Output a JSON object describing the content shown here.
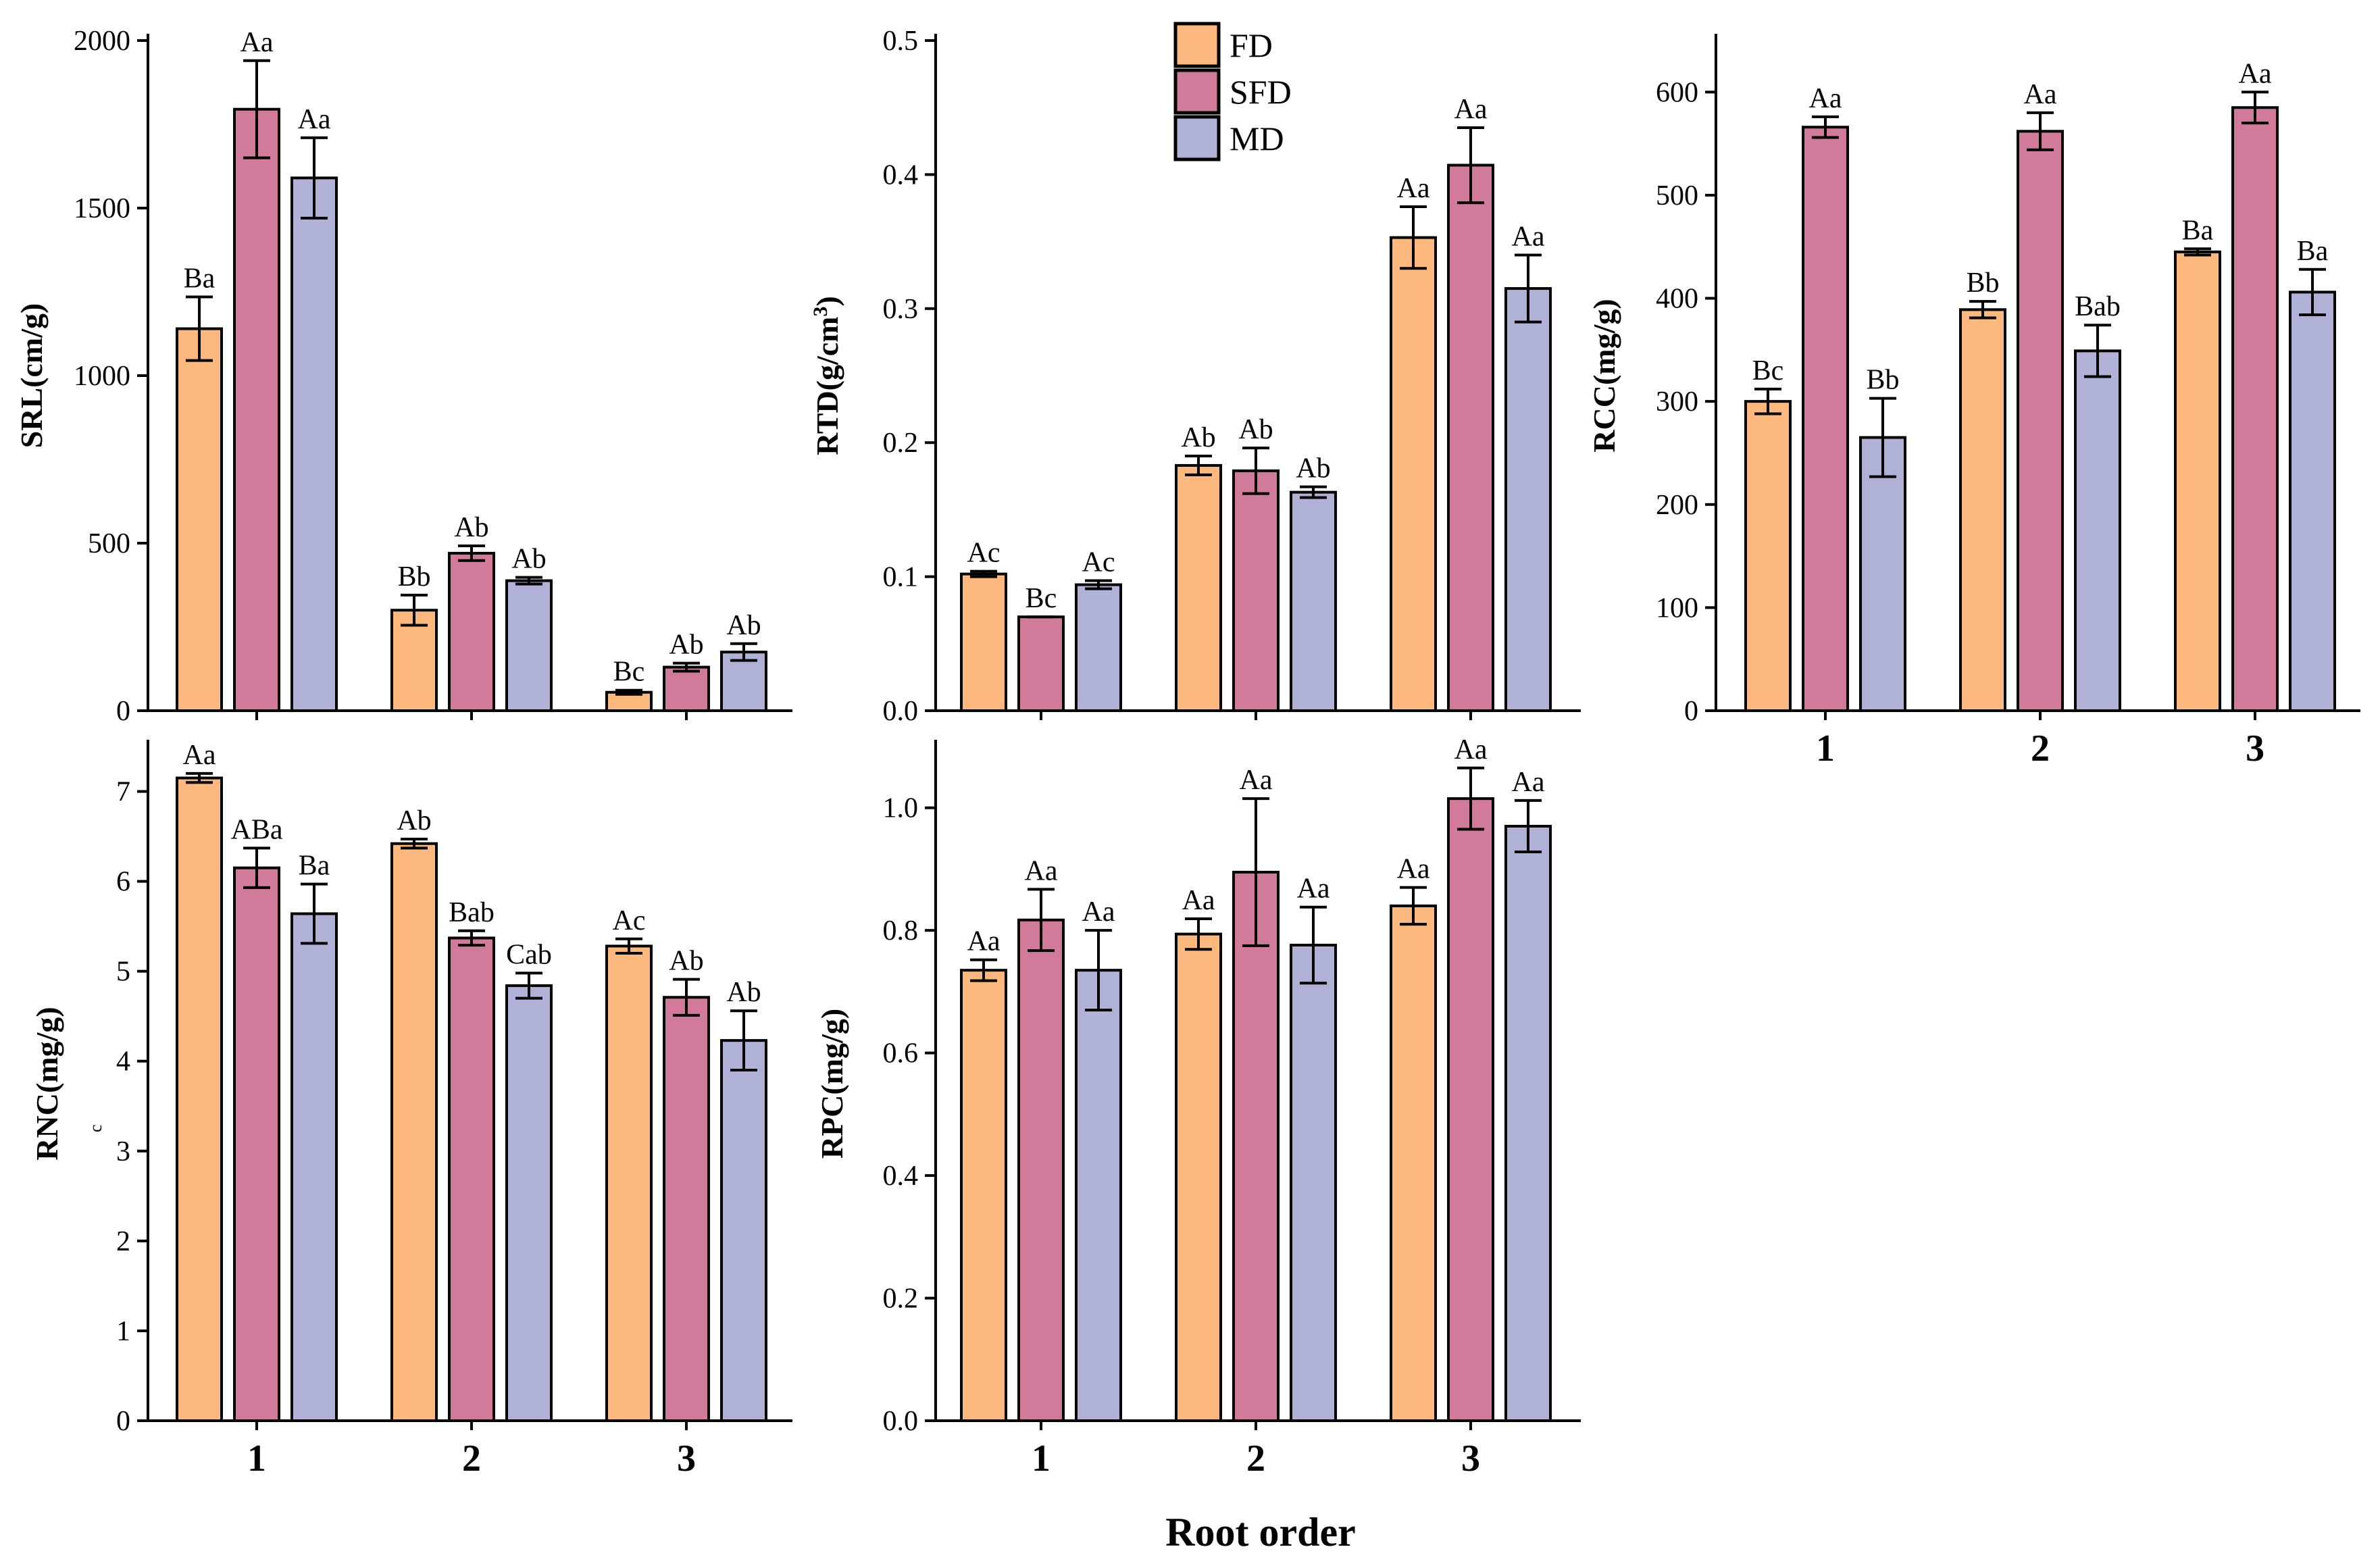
{
  "figure": {
    "x_title": "Root order",
    "stray_label": "c"
  },
  "legend": {
    "items": [
      {
        "name": "FD",
        "color": "#FDB97D"
      },
      {
        "name": "SFD",
        "color": "#D17A9B"
      },
      {
        "name": "MD",
        "color": "#B0B1D6"
      }
    ]
  },
  "chart_data": [
    {
      "id": "srl",
      "type": "bar",
      "ylabel": "SRL(cm/g)",
      "categories": [
        "1",
        "2",
        "3"
      ],
      "ylim": [
        0,
        2000
      ],
      "yticks": [
        0,
        500,
        1000,
        1500,
        2000
      ],
      "show_category_labels": false,
      "series": [
        {
          "name": "FD",
          "values": [
            1140,
            300,
            55
          ],
          "errors": [
            95,
            45,
            6
          ],
          "labels": [
            "Ba",
            "Bb",
            "Bc"
          ]
        },
        {
          "name": "SFD",
          "values": [
            1795,
            470,
            130
          ],
          "errors": [
            145,
            22,
            12
          ],
          "labels": [
            "Aa",
            "Ab",
            "Ab"
          ]
        },
        {
          "name": "MD",
          "values": [
            1590,
            388,
            175
          ],
          "errors": [
            120,
            10,
            25
          ],
          "labels": [
            "Aa",
            "Ab",
            "Ab"
          ]
        }
      ]
    },
    {
      "id": "rtd",
      "type": "bar",
      "ylabel": "RTD(g/cm",
      "ylabel_sup": "3",
      "ylabel_end": ")",
      "categories": [
        "1",
        "2",
        "3"
      ],
      "ylim": [
        0,
        0.5
      ],
      "yticks": [
        "0.0",
        "0.1",
        "0.2",
        "0.3",
        "0.4",
        "0.5"
      ],
      "show_category_labels": false,
      "series": [
        {
          "name": "FD",
          "values": [
            0.102,
            0.183,
            0.353
          ],
          "errors": [
            0.002,
            0.007,
            0.023
          ],
          "labels": [
            "Ac",
            "Ab",
            "Aa"
          ]
        },
        {
          "name": "SFD",
          "values": [
            0.07,
            0.179,
            0.407
          ],
          "errors": [
            0.0,
            0.017,
            0.028
          ],
          "labels": [
            "Bc",
            "Ab",
            "Aa"
          ]
        },
        {
          "name": "MD",
          "values": [
            0.094,
            0.163,
            0.315
          ],
          "errors": [
            0.003,
            0.004,
            0.025
          ],
          "labels": [
            "Ac",
            "Ab",
            "Aa"
          ]
        }
      ]
    },
    {
      "id": "rcc",
      "type": "bar",
      "ylabel": "RCC(mg/g)",
      "categories": [
        "1",
        "2",
        "3"
      ],
      "ylim": [
        0,
        650
      ],
      "yticks": [
        0,
        100,
        200,
        300,
        400,
        500,
        600
      ],
      "show_category_labels": true,
      "series": [
        {
          "name": "FD",
          "values": [
            300,
            389,
            445
          ],
          "errors": [
            12,
            8,
            3
          ],
          "labels": [
            "Bc",
            "Bb",
            "Ba"
          ]
        },
        {
          "name": "SFD",
          "values": [
            566,
            562,
            585
          ],
          "errors": [
            10,
            18,
            15
          ],
          "labels": [
            "Aa",
            "Aa",
            "Aa"
          ]
        },
        {
          "name": "MD",
          "values": [
            265,
            349,
            406
          ],
          "errors": [
            38,
            25,
            22
          ],
          "labels": [
            "Bb",
            "Bab",
            "Ba"
          ]
        }
      ]
    },
    {
      "id": "rnc",
      "type": "bar",
      "ylabel": "RNC(mg/g)",
      "categories": [
        "1",
        "2",
        "3"
      ],
      "ylim": [
        0,
        7.5
      ],
      "yticks": [
        0,
        1,
        2,
        3,
        4,
        5,
        6,
        7
      ],
      "show_category_labels": true,
      "series": [
        {
          "name": "FD",
          "values": [
            7.15,
            6.42,
            5.28
          ],
          "errors": [
            0.05,
            0.05,
            0.08
          ],
          "labels": [
            "Aa",
            "Ab",
            "Ac"
          ]
        },
        {
          "name": "SFD",
          "values": [
            6.15,
            5.37,
            4.71
          ],
          "errors": [
            0.22,
            0.08,
            0.2
          ],
          "labels": [
            "ABa",
            "Bab",
            "Ab"
          ]
        },
        {
          "name": "MD",
          "values": [
            5.64,
            4.84,
            4.23
          ],
          "errors": [
            0.33,
            0.14,
            0.33
          ],
          "labels": [
            "Ba",
            "Cab",
            "Ab"
          ]
        }
      ]
    },
    {
      "id": "rpc",
      "type": "bar",
      "ylabel": "RPC(mg/g)",
      "categories": [
        "1",
        "2",
        "3"
      ],
      "ylim": [
        0,
        1.1
      ],
      "yticks": [
        "0.0",
        "0.2",
        "0.4",
        "0.6",
        "0.8",
        "1.0"
      ],
      "show_category_labels": true,
      "series": [
        {
          "name": "FD",
          "values": [
            0.735,
            0.794,
            0.84
          ],
          "errors": [
            0.017,
            0.025,
            0.03
          ],
          "labels": [
            "Aa",
            "Aa",
            "Aa"
          ]
        },
        {
          "name": "SFD",
          "values": [
            0.817,
            0.895,
            1.015
          ],
          "errors": [
            0.05,
            0.12,
            0.05
          ],
          "labels": [
            "Aa",
            "Aa",
            "Aa"
          ]
        },
        {
          "name": "MD",
          "values": [
            0.735,
            0.776,
            0.97
          ],
          "errors": [
            0.065,
            0.062,
            0.042
          ],
          "labels": [
            "Aa",
            "Aa",
            "Aa"
          ]
        }
      ]
    }
  ]
}
